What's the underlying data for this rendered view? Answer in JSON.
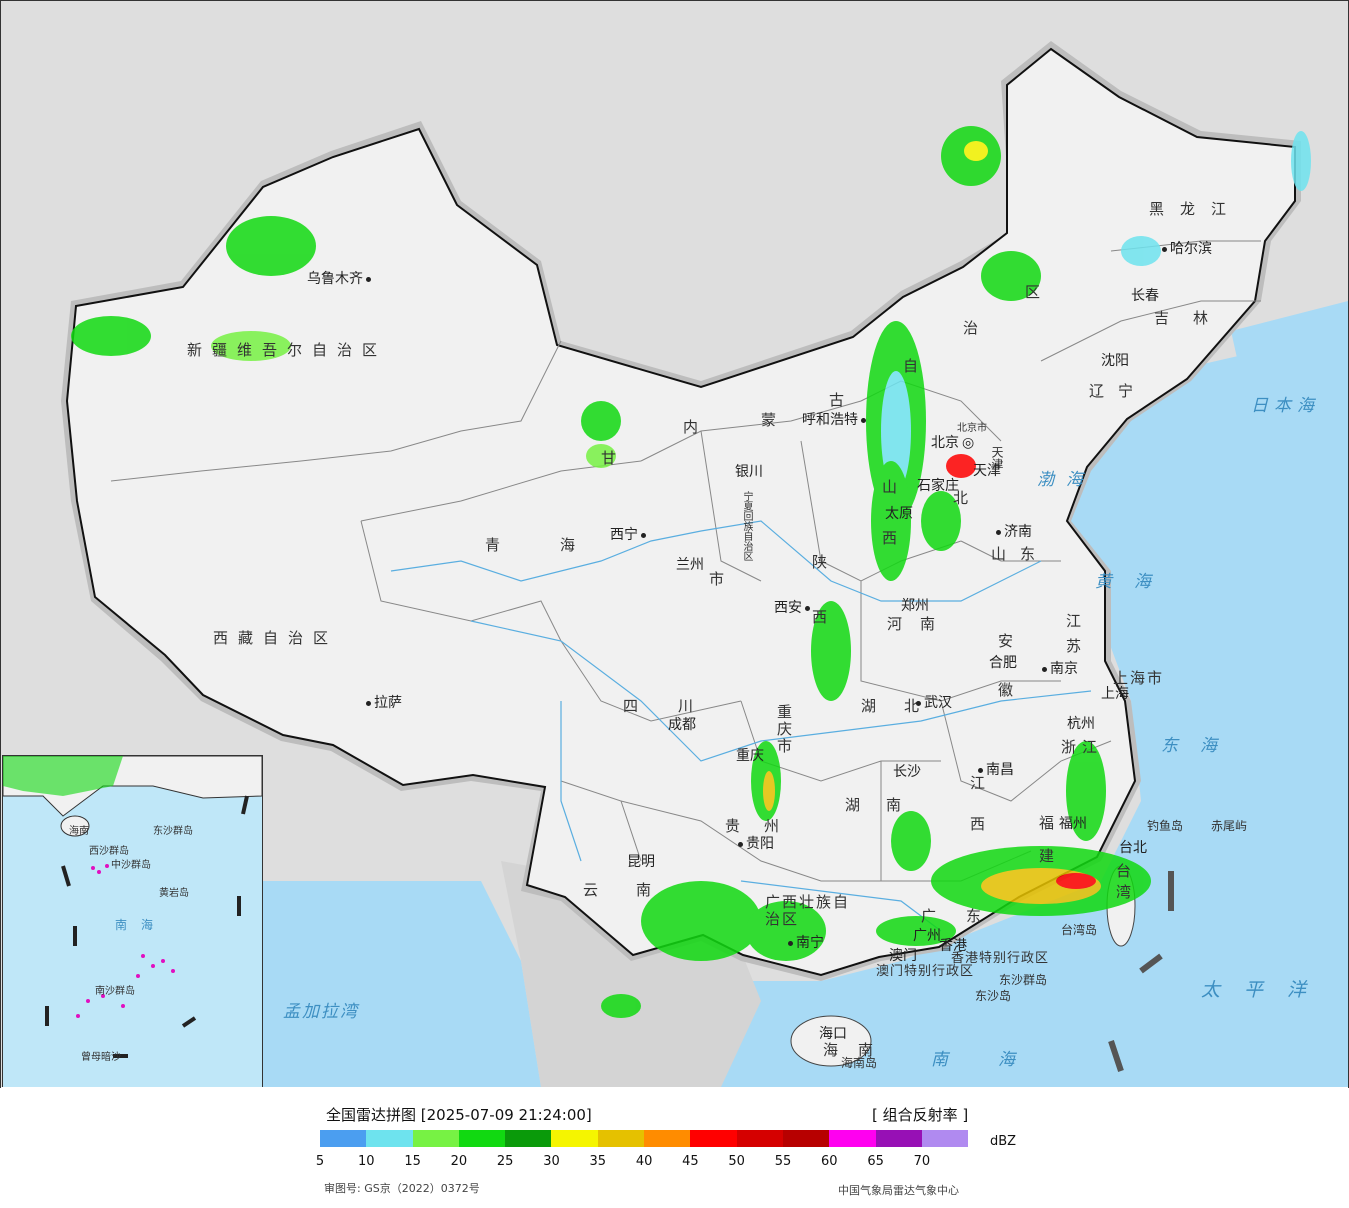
{
  "map": {
    "provinces": [
      {
        "id": "xinjiang",
        "label": "新疆维吾尔自治区"
      },
      {
        "id": "xizang",
        "label": "西藏自治区"
      },
      {
        "id": "qinghai",
        "label": "青海"
      },
      {
        "id": "gansu",
        "label": "甘"
      },
      {
        "id": "neimenggu_1",
        "label": "内"
      },
      {
        "id": "neimenggu_2",
        "label": "蒙"
      },
      {
        "id": "neimenggu_3",
        "label": "古"
      },
      {
        "id": "neimenggu_4",
        "label": "自"
      },
      {
        "id": "neimenggu_5",
        "label": "治"
      },
      {
        "id": "neimenggu_6",
        "label": "区"
      },
      {
        "id": "heilongjiang",
        "label": "黑龙江"
      },
      {
        "id": "jilin",
        "label": "吉林"
      },
      {
        "id": "liaoning",
        "label": "辽宁"
      },
      {
        "id": "hebei",
        "label": "北"
      },
      {
        "id": "shanxi",
        "label": "山西"
      },
      {
        "id": "shandong",
        "label": "山东"
      },
      {
        "id": "henan",
        "label": "河南"
      },
      {
        "id": "shaanxi",
        "label": "陕西"
      },
      {
        "id": "sichuan",
        "label": "四川"
      },
      {
        "id": "chongqing",
        "label": "重庆市"
      },
      {
        "id": "hubei",
        "label": "湖北"
      },
      {
        "id": "hunan",
        "label": "湖南"
      },
      {
        "id": "guizhou",
        "label": "贵州"
      },
      {
        "id": "yunnan",
        "label": "云南"
      },
      {
        "id": "guangxi",
        "label": "广西壮族自治区"
      },
      {
        "id": "guangdong",
        "label": "广东"
      },
      {
        "id": "jiangxi",
        "label": "江西"
      },
      {
        "id": "anhui",
        "label": "安徽"
      },
      {
        "id": "jiangsu",
        "label": "江苏"
      },
      {
        "id": "zhejiang",
        "label": "浙江"
      },
      {
        "id": "fujian",
        "label": "福建"
      },
      {
        "id": "shanghai",
        "label": "上海市"
      },
      {
        "id": "taiwan",
        "label": "台湾"
      },
      {
        "id": "hainan",
        "label": "海南"
      },
      {
        "id": "hongkong",
        "label": "香港特别行政区"
      },
      {
        "id": "macau",
        "label": "澳门特别行政区"
      },
      {
        "id": "ningxia",
        "label": "宁夏回族自治区"
      },
      {
        "id": "tianjin",
        "label": "天津"
      },
      {
        "id": "beijing",
        "label": "北京市"
      },
      {
        "id": "gansu_shi",
        "label": "市"
      }
    ],
    "cities": [
      {
        "name": "乌鲁木齐"
      },
      {
        "name": "拉萨"
      },
      {
        "name": "西宁"
      },
      {
        "name": "兰州"
      },
      {
        "name": "银川"
      },
      {
        "name": "呼和浩特"
      },
      {
        "name": "北京"
      },
      {
        "name": "天津"
      },
      {
        "name": "石家庄"
      },
      {
        "name": "太原"
      },
      {
        "name": "济南"
      },
      {
        "name": "郑州"
      },
      {
        "name": "西安"
      },
      {
        "name": "成都"
      },
      {
        "name": "重庆"
      },
      {
        "name": "武汉"
      },
      {
        "name": "合肥"
      },
      {
        "name": "南京"
      },
      {
        "name": "上海"
      },
      {
        "name": "杭州"
      },
      {
        "name": "南昌"
      },
      {
        "name": "长沙"
      },
      {
        "name": "贵阳"
      },
      {
        "name": "昆明"
      },
      {
        "name": "南宁"
      },
      {
        "name": "广州"
      },
      {
        "name": "福州"
      },
      {
        "name": "台北"
      },
      {
        "name": "海口"
      },
      {
        "name": "沈阳"
      },
      {
        "name": "长春"
      },
      {
        "name": "哈尔滨"
      },
      {
        "name": "香港"
      },
      {
        "name": "澳门"
      }
    ],
    "seas": [
      {
        "id": "bohai",
        "label": "渤海"
      },
      {
        "id": "huanghai",
        "label": "黄海"
      },
      {
        "id": "donghai",
        "label": "东海"
      },
      {
        "id": "nanhai",
        "label": "南海"
      },
      {
        "id": "taipingyang",
        "label": "太平洋"
      },
      {
        "id": "ribenhai",
        "label": "日本海"
      },
      {
        "id": "mengjialawan",
        "label": "孟加拉湾"
      }
    ],
    "islands": [
      {
        "id": "diaoyu",
        "label": "钓鱼岛"
      },
      {
        "id": "chiwei",
        "label": "赤尾屿"
      },
      {
        "id": "taiwan_island",
        "label": "台湾岛"
      },
      {
        "id": "dongsha",
        "label": "东沙群岛"
      },
      {
        "id": "dongsha_island",
        "label": "东沙岛"
      },
      {
        "id": "hainan_island",
        "label": "海南岛"
      }
    ]
  },
  "inset": {
    "labels": [
      {
        "id": "nanhai",
        "label": "南海"
      },
      {
        "id": "xisha",
        "label": "西沙群岛"
      },
      {
        "id": "zhongsha",
        "label": "中沙群岛"
      },
      {
        "id": "nansha",
        "label": "南沙群岛"
      },
      {
        "id": "huangyan",
        "label": "黄岩岛"
      },
      {
        "id": "zengmu",
        "label": "曾母暗沙"
      },
      {
        "id": "hainan",
        "label": "海南"
      },
      {
        "id": "dongsha",
        "label": "东沙群岛"
      }
    ]
  },
  "legend": {
    "title": "全国雷达拼图 [2025-07-09 21:24:00]",
    "product": "[ 组合反射率 ]",
    "unit": "dBZ",
    "ticks": [
      "5",
      "10",
      "15",
      "20",
      "25",
      "30",
      "35",
      "40",
      "45",
      "50",
      "55",
      "60",
      "65",
      "70"
    ],
    "colors": [
      "#4b9ef0",
      "#6ee3ee",
      "#77f244",
      "#11d911",
      "#0a9a0a",
      "#f5f500",
      "#e5c100",
      "#ff8c00",
      "#ff0000",
      "#d50000",
      "#b70000",
      "#ff00f0",
      "#9710b5",
      "#b08af0"
    ],
    "approval": "审图号: GS京（2022）0372号",
    "source": "中国气象局雷达气象中心"
  }
}
